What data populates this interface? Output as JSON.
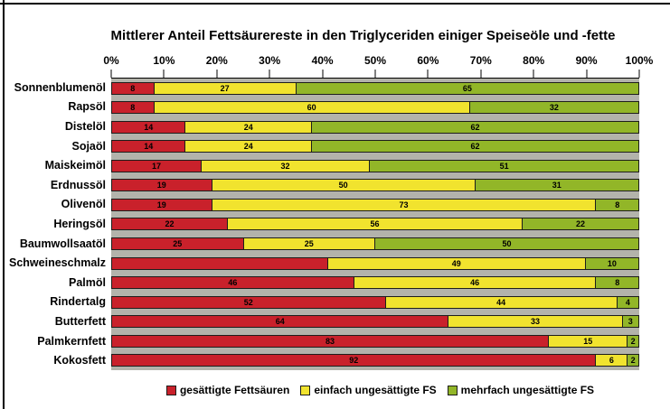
{
  "chart_data": {
    "type": "bar",
    "orientation": "horizontal",
    "stacked": true,
    "title": "Mittlerer Anteil Fettsäurereste in den Triglyceriden einiger Speiseöle und -fette",
    "x_axis": {
      "position": "top",
      "min": 0,
      "max": 100,
      "ticks": [
        "0%",
        "10%",
        "20%",
        "30%",
        "40%",
        "50%",
        "60%",
        "70%",
        "80%",
        "90%",
        "100%"
      ]
    },
    "plot_background": "#b3b3ab",
    "legend_position": "bottom",
    "categories": [
      "Sonnenblumenöl",
      "Rapsöl",
      "Distelöl",
      "Sojaöl",
      "Maiskeimöl",
      "Erdnussöl",
      "Olivenöl",
      "Heringsöl",
      "Baumwollsaatöl",
      "Schweineschmalz",
      "Palmöl",
      "Rindertalg",
      "Butterfett",
      "Palmkernfett",
      "Kokosfett"
    ],
    "series": [
      {
        "name": "gesättigte Fettsäuren",
        "color": "#c9212b",
        "values": [
          8,
          8,
          14,
          14,
          17,
          19,
          19,
          22,
          25,
          41,
          46,
          52,
          64,
          83,
          92
        ],
        "labels": [
          "8",
          "8",
          "14",
          "14",
          "17",
          "19",
          "19",
          "22",
          "25",
          "",
          "46",
          "52",
          "64",
          "83",
          "92"
        ]
      },
      {
        "name": "einfach ungesättigte FS",
        "color": "#f1e32e",
        "values": [
          27,
          60,
          24,
          24,
          32,
          50,
          73,
          56,
          25,
          49,
          46,
          44,
          33,
          15,
          6
        ],
        "labels": [
          "27",
          "60",
          "24",
          "24",
          "32",
          "50",
          "73",
          "56",
          "25",
          "49",
          "46",
          "44",
          "33",
          "15",
          "6"
        ]
      },
      {
        "name": "mehrfach ungesättigte FS",
        "color": "#92b628",
        "values": [
          65,
          32,
          62,
          62,
          51,
          31,
          8,
          22,
          50,
          10,
          8,
          4,
          3,
          2,
          2
        ],
        "labels": [
          "65",
          "32",
          "62",
          "62",
          "51",
          "31",
          "8",
          "22",
          "50",
          "10",
          "8",
          "4",
          "3",
          "2",
          "2"
        ]
      }
    ]
  },
  "legend": {
    "items": [
      {
        "label": "gesättigte Fettsäuren",
        "color": "#c9212b"
      },
      {
        "label": "einfach ungesättigte FS",
        "color": "#f1e32e"
      },
      {
        "label": "mehrfach ungesättigte FS",
        "color": "#92b628"
      }
    ]
  }
}
